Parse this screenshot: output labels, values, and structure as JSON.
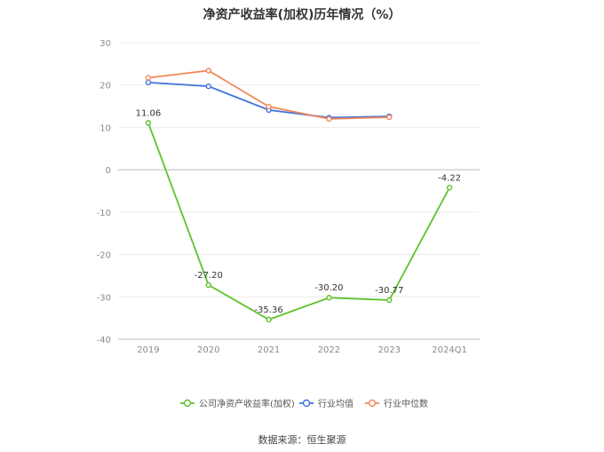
{
  "title": "净资产收益率(加权)历年情况（%）",
  "source": "数据来源：恒生聚源",
  "chart_data": {
    "type": "line",
    "title": "净资产收益率(加权)历年情况（%）",
    "categories": [
      "2019",
      "2020",
      "2021",
      "2022",
      "2023",
      "2024Q1"
    ],
    "ylim": [
      -40,
      30
    ],
    "yticks": [
      30,
      20,
      10,
      0,
      -10,
      -20,
      -30,
      -40
    ],
    "grid": true,
    "legend_position": "bottom",
    "series": [
      {
        "name": "公司净资产收益率(加权)",
        "color": "#5dc22c",
        "values": [
          11.06,
          -27.2,
          -35.36,
          -30.2,
          -30.77,
          -4.22
        ],
        "labels": [
          "11.06",
          "-27.20",
          "-35.36",
          "-30.20",
          "-30.77",
          "-4.22"
        ]
      },
      {
        "name": "行业均值",
        "color": "#3f74dc",
        "values": [
          20.6,
          19.7,
          14.1,
          12.3,
          12.6,
          null
        ]
      },
      {
        "name": "行业中位数",
        "color": "#f2875a",
        "values": [
          21.7,
          23.4,
          14.9,
          12.0,
          12.4,
          null
        ]
      }
    ]
  }
}
